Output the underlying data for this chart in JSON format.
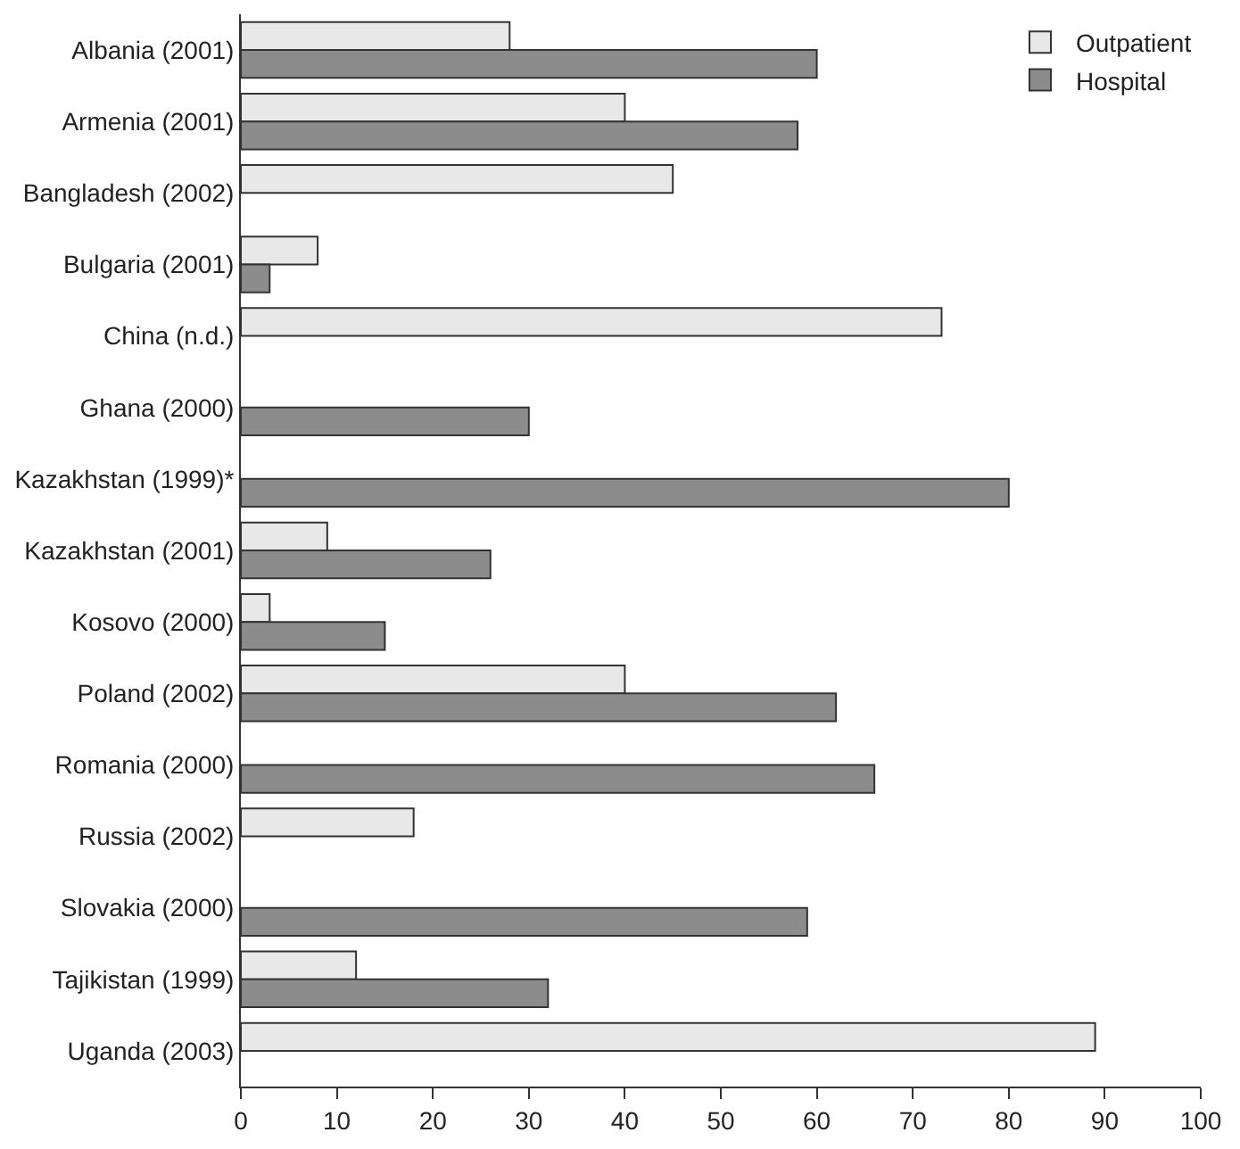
{
  "chart_data": {
    "type": "bar",
    "orientation": "horizontal",
    "categories": [
      "Albania (2001)",
      "Armenia (2001)",
      "Bangladesh (2002)",
      "Bulgaria (2001)",
      "China (n.d.)",
      "Ghana (2000)",
      "Kazakhstan (1999)*",
      "Kazakhstan (2001)",
      "Kosovo (2000)",
      "Poland (2002)",
      "Romania (2000)",
      "Russia (2002)",
      "Slovakia (2000)",
      "Tajikistan (1999)",
      "Uganda (2003)"
    ],
    "series": [
      {
        "name": "Outpatient",
        "color": "#e8e8e8",
        "values": [
          28,
          40,
          45,
          8,
          73,
          null,
          null,
          9,
          3,
          40,
          null,
          18,
          null,
          12,
          89
        ]
      },
      {
        "name": "Hospital",
        "color": "#8c8c8c",
        "values": [
          60,
          58,
          null,
          3,
          null,
          30,
          80,
          26,
          15,
          62,
          66,
          null,
          59,
          32,
          null
        ]
      }
    ],
    "xlim": [
      0,
      100
    ],
    "xticks": [
      0,
      10,
      20,
      30,
      40,
      50,
      60,
      70,
      80,
      90,
      100
    ],
    "legend": "top right"
  }
}
